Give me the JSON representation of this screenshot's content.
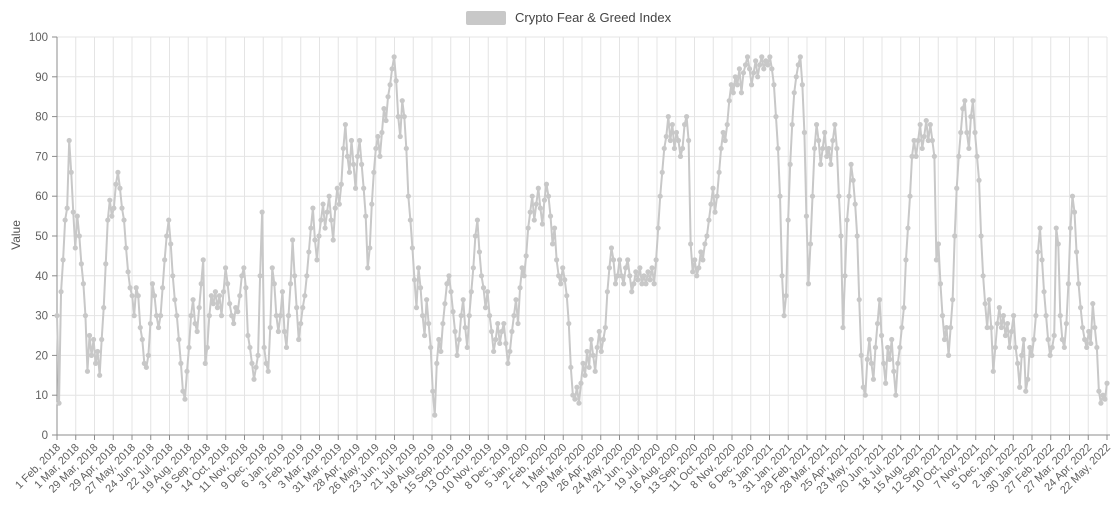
{
  "legend": {
    "series_label": "Crypto Fear & Greed Index"
  },
  "colors": {
    "series": "#c8c8c8",
    "grid": "#e4e4e4",
    "axis": "#8c8c8c",
    "tick_text": "#5f5f5f",
    "legend_text": "#444444",
    "background": "#ffffff"
  },
  "chart_data": {
    "type": "line",
    "title": "Crypto Fear & Greed Index",
    "xlabel": "",
    "ylabel": "Value",
    "ylim": [
      0,
      100
    ],
    "grid": true,
    "legend_position": "top-center",
    "marker": "circle",
    "y_ticks": [
      0,
      10,
      20,
      30,
      40,
      50,
      60,
      70,
      80,
      90,
      100
    ],
    "x_tick_labels": [
      "1 Feb, 2018",
      "1 Mar, 2018",
      "29 Mar, 2018",
      "29 Apr, 2018",
      "27 May, 2018",
      "24 Jun, 2018",
      "22 Jul, 2018",
      "19 Aug, 2018",
      "16 Sep, 2018",
      "14 Oct, 2018",
      "11 Nov, 2018",
      "9 Dec, 2018",
      "6 Jan, 2019",
      "3 Feb, 2019",
      "3 Mar, 2019",
      "31 Mar, 2019",
      "28 Apr, 2019",
      "26 May, 2019",
      "23 Jun, 2019",
      "21 Jul, 2019",
      "18 Aug, 2019",
      "15 Sep, 2019",
      "13 Oct, 2019",
      "10 Nov, 2019",
      "8 Dec, 2019",
      "5 Jan, 2020",
      "2 Feb, 2020",
      "1 Mar, 2020",
      "29 Mar, 2020",
      "26 Apr, 2020",
      "24 May, 2020",
      "21 Jun, 2020",
      "19 Jul, 2020",
      "16 Aug, 2020",
      "13 Sep, 2020",
      "11 Oct, 2020",
      "8 Nov, 2020",
      "6 Dec, 2020",
      "3 Jan, 2021",
      "31 Jan, 2021",
      "28 Feb, 2021",
      "28 Mar, 2021",
      "25 Apr, 2021",
      "23 May, 2021",
      "20 Jun, 2021",
      "18 Jul, 2021",
      "15 Aug, 2021",
      "12 Sep, 2021",
      "10 Oct, 2021",
      "7 Nov, 2021",
      "5 Dec, 2021",
      "2 Jan, 2022",
      "30 Jan, 2022",
      "27 Feb, 2022",
      "27 Mar, 2022",
      "24 Apr, 2022",
      "22 May, 2022"
    ],
    "series": [
      {
        "name": "Crypto Fear & Greed Index",
        "color": "#c8c8c8",
        "start_date": "1 Feb, 2018",
        "end_date": "22 May, 2022",
        "sampling": "approx. every 3 days, values estimated from pixels (0-100 index)",
        "values": [
          30,
          8,
          36,
          44,
          54,
          57,
          74,
          66,
          56,
          47,
          55,
          50,
          43,
          38,
          30,
          16,
          25,
          20,
          24,
          18,
          21,
          15,
          24,
          32,
          43,
          54,
          59,
          55,
          57,
          63,
          66,
          62,
          57,
          54,
          47,
          41,
          37,
          35,
          30,
          37,
          35,
          27,
          24,
          18,
          17,
          20,
          28,
          38,
          35,
          30,
          27,
          30,
          37,
          44,
          50,
          54,
          48,
          40,
          34,
          30,
          24,
          18,
          11,
          9,
          16,
          22,
          30,
          34,
          28,
          26,
          32,
          38,
          44,
          18,
          22,
          30,
          35,
          33,
          36,
          32,
          35,
          30,
          36,
          42,
          38,
          33,
          30,
          28,
          32,
          31,
          35,
          40,
          42,
          37,
          25,
          22,
          18,
          14,
          17,
          20,
          40,
          56,
          22,
          18,
          16,
          27,
          42,
          38,
          30,
          26,
          30,
          36,
          26,
          22,
          30,
          38,
          49,
          40,
          32,
          24,
          28,
          32,
          35,
          40,
          46,
          52,
          57,
          49,
          44,
          50,
          54,
          58,
          52,
          56,
          60,
          54,
          49,
          57,
          62,
          58,
          63,
          72,
          78,
          70,
          66,
          74,
          68,
          62,
          70,
          74,
          68,
          62,
          55,
          42,
          47,
          58,
          66,
          72,
          75,
          70,
          76,
          82,
          79,
          85,
          88,
          92,
          95,
          89,
          80,
          75,
          84,
          80,
          72,
          60,
          54,
          47,
          39,
          32,
          42,
          37,
          30,
          25,
          34,
          28,
          22,
          11,
          5,
          18,
          24,
          21,
          28,
          33,
          38,
          40,
          36,
          31,
          26,
          20,
          24,
          30,
          34,
          27,
          22,
          30,
          36,
          42,
          50,
          54,
          46,
          40,
          37,
          32,
          36,
          30,
          26,
          21,
          24,
          28,
          23,
          26,
          28,
          23,
          18,
          21,
          26,
          30,
          34,
          28,
          37,
          42,
          40,
          45,
          52,
          56,
          60,
          54,
          58,
          62,
          57,
          53,
          59,
          63,
          60,
          55,
          48,
          52,
          44,
          40,
          38,
          42,
          39,
          35,
          28,
          17,
          10,
          9,
          12,
          8,
          13,
          18,
          15,
          21,
          17,
          24,
          20,
          16,
          22,
          26,
          21,
          24,
          27,
          36,
          42,
          47,
          44,
          38,
          40,
          44,
          40,
          38,
          42,
          44,
          40,
          36,
          38,
          41,
          39,
          42,
          38,
          40,
          38,
          41,
          39,
          42,
          38,
          44,
          52,
          60,
          66,
          72,
          75,
          80,
          74,
          78,
          72,
          76,
          74,
          70,
          72,
          78,
          80,
          74,
          48,
          41,
          44,
          40,
          42,
          46,
          44,
          48,
          50,
          54,
          58,
          62,
          56,
          60,
          66,
          72,
          76,
          74,
          78,
          84,
          88,
          86,
          90,
          88,
          92,
          86,
          91,
          93,
          95,
          92,
          88,
          91,
          94,
          90,
          93,
          95,
          92,
          94,
          93,
          95,
          92,
          88,
          80,
          72,
          60,
          40,
          30,
          35,
          54,
          68,
          78,
          86,
          90,
          93,
          95,
          88,
          76,
          55,
          38,
          48,
          60,
          72,
          78,
          74,
          68,
          72,
          76,
          70,
          72,
          68,
          74,
          78,
          72,
          60,
          50,
          27,
          40,
          54,
          60,
          68,
          64,
          58,
          50,
          34,
          20,
          12,
          10,
          19,
          24,
          18,
          14,
          22,
          28,
          34,
          25,
          18,
          13,
          22,
          19,
          24,
          16,
          10,
          18,
          22,
          27,
          32,
          44,
          52,
          60,
          70,
          74,
          70,
          74,
          78,
          72,
          75,
          79,
          74,
          78,
          74,
          70,
          44,
          48,
          38,
          30,
          24,
          27,
          20,
          27,
          34,
          50,
          62,
          70,
          76,
          82,
          84,
          76,
          72,
          80,
          84,
          76,
          70,
          64,
          50,
          40,
          33,
          27,
          34,
          27,
          16,
          22,
          28,
          32,
          27,
          30,
          25,
          28,
          22,
          26,
          30,
          22,
          18,
          12,
          20,
          24,
          11,
          14,
          22,
          20,
          24,
          30,
          46,
          52,
          44,
          36,
          30,
          24,
          20,
          22,
          25,
          52,
          48,
          30,
          24,
          22,
          28,
          38,
          52,
          60,
          56,
          46,
          38,
          32,
          27,
          24,
          22,
          26,
          23,
          33,
          27,
          22,
          11,
          8,
          10,
          9,
          13
        ]
      }
    ]
  }
}
